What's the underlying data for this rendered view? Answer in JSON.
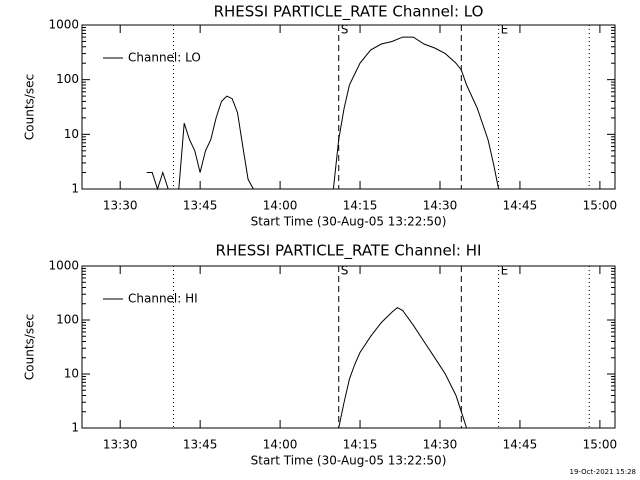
{
  "chart_data": [
    {
      "type": "line",
      "title": "RHESSI PARTICLE_RATE Channel: LO",
      "x_label": "Start Time (30-Aug-05 13:22:50)",
      "y_label": "Counts/sec",
      "log_y": true,
      "ylim": [
        1,
        1000
      ],
      "yticks": [
        1,
        10,
        100,
        1000
      ],
      "xlim": [
        "13:22:50",
        "15:02:50"
      ],
      "xticks": [
        "13:30",
        "13:45",
        "14:00",
        "14:15",
        "14:30",
        "14:45",
        "15:00"
      ],
      "legend": "upper left",
      "x": [
        "13:35",
        "13:36",
        "13:37",
        "13:38",
        "13:39",
        "13:40",
        "13:41",
        "13:42",
        "13:43",
        "13:44",
        "13:45",
        "13:46",
        "13:47",
        "13:48",
        "13:49",
        "13:50",
        "13:51",
        "13:52",
        "13:53",
        "13:54",
        "13:55",
        "14:05",
        "14:10",
        "14:11",
        "14:12",
        "14:13",
        "14:15",
        "14:17",
        "14:19",
        "14:21",
        "14:23",
        "14:25",
        "14:27",
        "14:29",
        "14:31",
        "14:33",
        "14:34",
        "14:35",
        "14:37",
        "14:39",
        "14:40",
        "14:41"
      ],
      "series": [
        {
          "name": "Channel: LO",
          "color": "#000000",
          "values": [
            2,
            2,
            1,
            2,
            1,
            null,
            1,
            16,
            8,
            5,
            2,
            5,
            8,
            20,
            40,
            50,
            45,
            25,
            6,
            1.5,
            1,
            null,
            1,
            8,
            30,
            80,
            200,
            350,
            450,
            500,
            600,
            600,
            450,
            380,
            300,
            200,
            150,
            80,
            30,
            8,
            3,
            1
          ]
        }
      ],
      "markers": [
        {
          "x": "13:40",
          "style": "dotted"
        },
        {
          "x": "14:11",
          "style": "dashed",
          "label": "S"
        },
        {
          "x": "14:34",
          "style": "dashed"
        },
        {
          "x": "14:41",
          "style": "dotted",
          "label": "E"
        },
        {
          "x": "14:58",
          "style": "dotted"
        }
      ]
    },
    {
      "type": "line",
      "title": "RHESSI PARTICLE_RATE Channel: HI",
      "x_label": "Start Time (30-Aug-05 13:22:50)",
      "y_label": "Counts/sec",
      "log_y": true,
      "ylim": [
        1,
        1000
      ],
      "yticks": [
        1,
        10,
        100,
        1000
      ],
      "xlim": [
        "13:22:50",
        "15:02:50"
      ],
      "xticks": [
        "13:30",
        "13:45",
        "14:00",
        "14:15",
        "14:30",
        "14:45",
        "15:00"
      ],
      "legend": "upper left",
      "x": [
        "14:11",
        "14:12",
        "14:13",
        "14:14",
        "14:15",
        "14:17",
        "14:19",
        "14:21",
        "14:22",
        "14:23",
        "14:25",
        "14:27",
        "14:29",
        "14:31",
        "14:33",
        "14:34",
        "14:35"
      ],
      "series": [
        {
          "name": "Channel: HI",
          "color": "#000000",
          "values": [
            1,
            3,
            8,
            15,
            25,
            50,
            90,
            140,
            170,
            150,
            80,
            40,
            20,
            10,
            4,
            2,
            1
          ]
        }
      ],
      "markers": [
        {
          "x": "13:40",
          "style": "dotted"
        },
        {
          "x": "14:11",
          "style": "dashed",
          "label": "S"
        },
        {
          "x": "14:34",
          "style": "dashed"
        },
        {
          "x": "14:41",
          "style": "dotted",
          "label": "E"
        },
        {
          "x": "14:58",
          "style": "dotted"
        }
      ]
    }
  ],
  "footer": "19-Oct-2021 15:28"
}
